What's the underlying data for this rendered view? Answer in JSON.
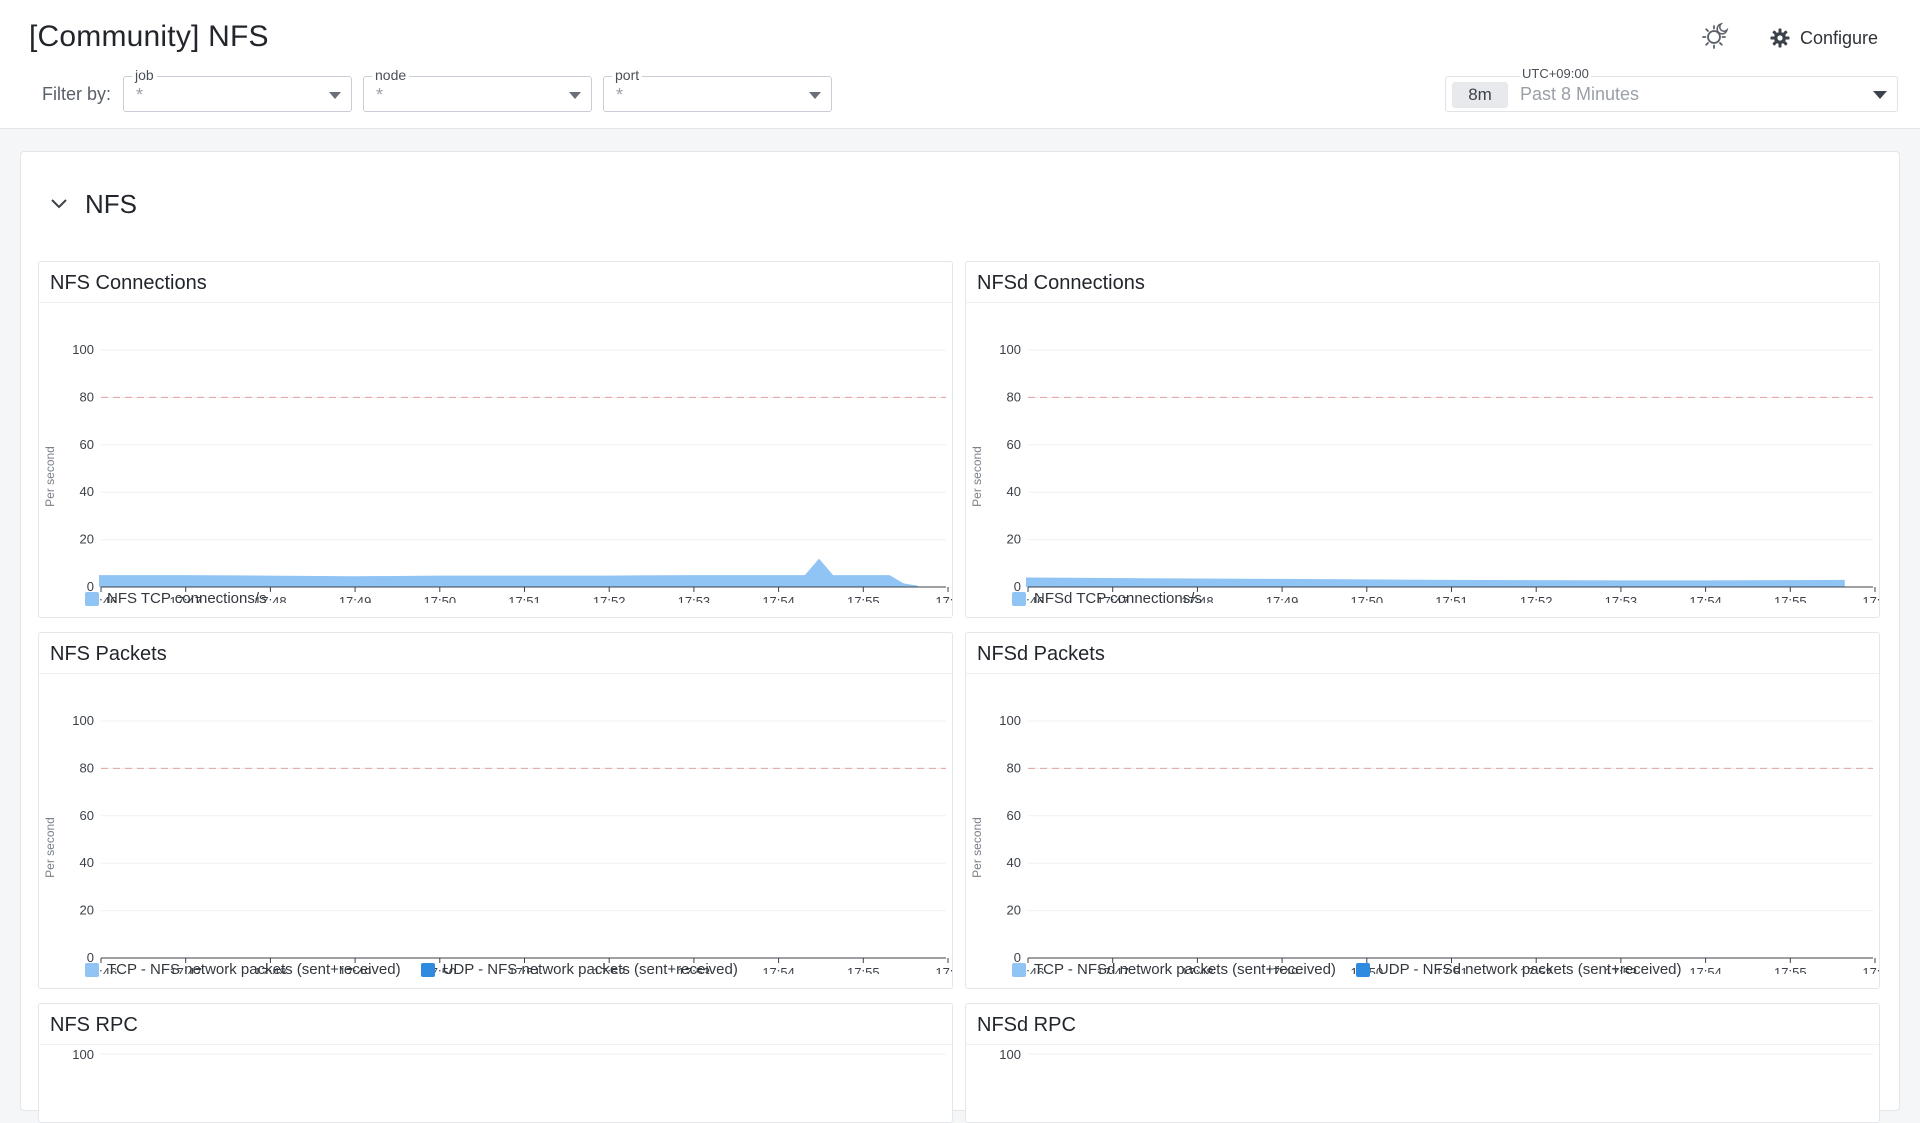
{
  "header": {
    "title": "[Community] NFS",
    "configure_label": "Configure"
  },
  "filters": {
    "label": "Filter by:",
    "items": [
      {
        "label": "job",
        "value": "*"
      },
      {
        "label": "node",
        "value": "*"
      },
      {
        "label": "port",
        "value": "*"
      }
    ]
  },
  "time_picker": {
    "timezone": "UTC+09:00",
    "badge": "8m",
    "value": "Past 8 Minutes"
  },
  "section": {
    "title": "NFS"
  },
  "colors": {
    "series_light": "#90c4f4",
    "series_dark": "#2f8be0",
    "threshold": "#e8a0a0"
  },
  "panels": [
    {
      "title": "NFS Connections",
      "ylabel": "Per second",
      "legend": [
        {
          "name": "NFS TCP connections/s",
          "color": "#90c4f4"
        }
      ]
    },
    {
      "title": "NFSd Connections",
      "ylabel": "Per second",
      "legend": [
        {
          "name": "NFSd TCP connections/s",
          "color": "#90c4f4"
        }
      ]
    },
    {
      "title": "NFS Packets",
      "ylabel": "Per second",
      "legend": [
        {
          "name": "TCP - NFS network packets (sent+received)",
          "color": "#90c4f4"
        },
        {
          "name": "UDP - NFS network packets (sent+received)",
          "color": "#2f8be0"
        }
      ]
    },
    {
      "title": "NFSd Packets",
      "ylabel": "Per second",
      "legend": [
        {
          "name": "TCP - NFSd network packets (sent+received)",
          "color": "#90c4f4"
        },
        {
          "name": "UDP - NFSd network packets (sent+received)",
          "color": "#2f8be0"
        }
      ]
    },
    {
      "title": "NFS RPC",
      "ylabel": "",
      "legend": []
    },
    {
      "title": "NFSd RPC",
      "ylabel": "",
      "legend": []
    }
  ],
  "chart_data": [
    {
      "type": "area",
      "title": "NFS Connections",
      "ylabel": "Per second",
      "ylim": [
        0,
        100
      ],
      "yticks": [
        0,
        20,
        40,
        60,
        80,
        100
      ],
      "threshold": 80,
      "x_ticks": [
        "17:46",
        "17:47",
        "17:48",
        "17:49",
        "17:50",
        "17:51",
        "17:52",
        "17:53",
        "17:54",
        "17:55",
        "17:5"
      ],
      "x": [
        "17:46:00",
        "17:47:00",
        "17:48:00",
        "17:49:00",
        "17:50:00",
        "17:51:00",
        "17:52:00",
        "17:53:00",
        "17:54:00",
        "17:54:20",
        "17:54:30",
        "17:54:40",
        "17:55:00",
        "17:55:20",
        "17:55:30",
        "17:55:40"
      ],
      "series": [
        {
          "name": "NFS TCP connections/s",
          "values": [
            5,
            5,
            4.8,
            4.5,
            4.8,
            4.8,
            4.8,
            5,
            5,
            5,
            12,
            5,
            5,
            5,
            1.5,
            0.5
          ]
        }
      ]
    },
    {
      "type": "area",
      "title": "NFSd Connections",
      "ylabel": "Per second",
      "ylim": [
        0,
        100
      ],
      "yticks": [
        0,
        20,
        40,
        60,
        80,
        100
      ],
      "threshold": 80,
      "x_ticks": [
        "17:46",
        "17:47",
        "17:48",
        "17:49",
        "17:50",
        "17:51",
        "17:52",
        "17:53",
        "17:54",
        "17:55",
        "17:5"
      ],
      "x": [
        "17:46:00",
        "17:47:00",
        "17:48:00",
        "17:49:00",
        "17:50:00",
        "17:51:00",
        "17:52:00",
        "17:53:00",
        "17:54:00",
        "17:55:00",
        "17:55:40"
      ],
      "series": [
        {
          "name": "NFSd TCP connections/s",
          "values": [
            4,
            3.8,
            3.6,
            3.4,
            3.2,
            3,
            2.9,
            2.8,
            2.8,
            2.9,
            3
          ]
        }
      ]
    },
    {
      "type": "line",
      "title": "NFS Packets",
      "ylabel": "Per second",
      "ylim": [
        0,
        100
      ],
      "yticks": [
        0,
        20,
        40,
        60,
        80,
        100
      ],
      "threshold": 80,
      "x_ticks": [
        "17:46",
        "17:47",
        "17:48",
        "17:49",
        "17:50",
        "17:51",
        "17:52",
        "17:53",
        "17:54",
        "17:55",
        "17:5"
      ],
      "series": [
        {
          "name": "TCP - NFS network packets (sent+received)",
          "values": []
        },
        {
          "name": "UDP - NFS network packets (sent+received)",
          "values": []
        }
      ]
    },
    {
      "type": "line",
      "title": "NFSd Packets",
      "ylabel": "Per second",
      "ylim": [
        0,
        100
      ],
      "yticks": [
        0,
        20,
        40,
        60,
        80,
        100
      ],
      "threshold": 80,
      "x_ticks": [
        "17:46",
        "17:47",
        "17:48",
        "17:49",
        "17:50",
        "17:51",
        "17:52",
        "17:53",
        "17:54",
        "17:55",
        "17:5"
      ],
      "series": [
        {
          "name": "TCP - NFSd network packets (sent+received)",
          "values": []
        },
        {
          "name": "UDP - NFSd network packets (sent+received)",
          "values": []
        }
      ]
    },
    {
      "type": "line",
      "title": "NFS RPC",
      "yticks": [
        100
      ],
      "series": []
    },
    {
      "type": "line",
      "title": "NFSd RPC",
      "yticks": [
        100
      ],
      "series": []
    }
  ]
}
